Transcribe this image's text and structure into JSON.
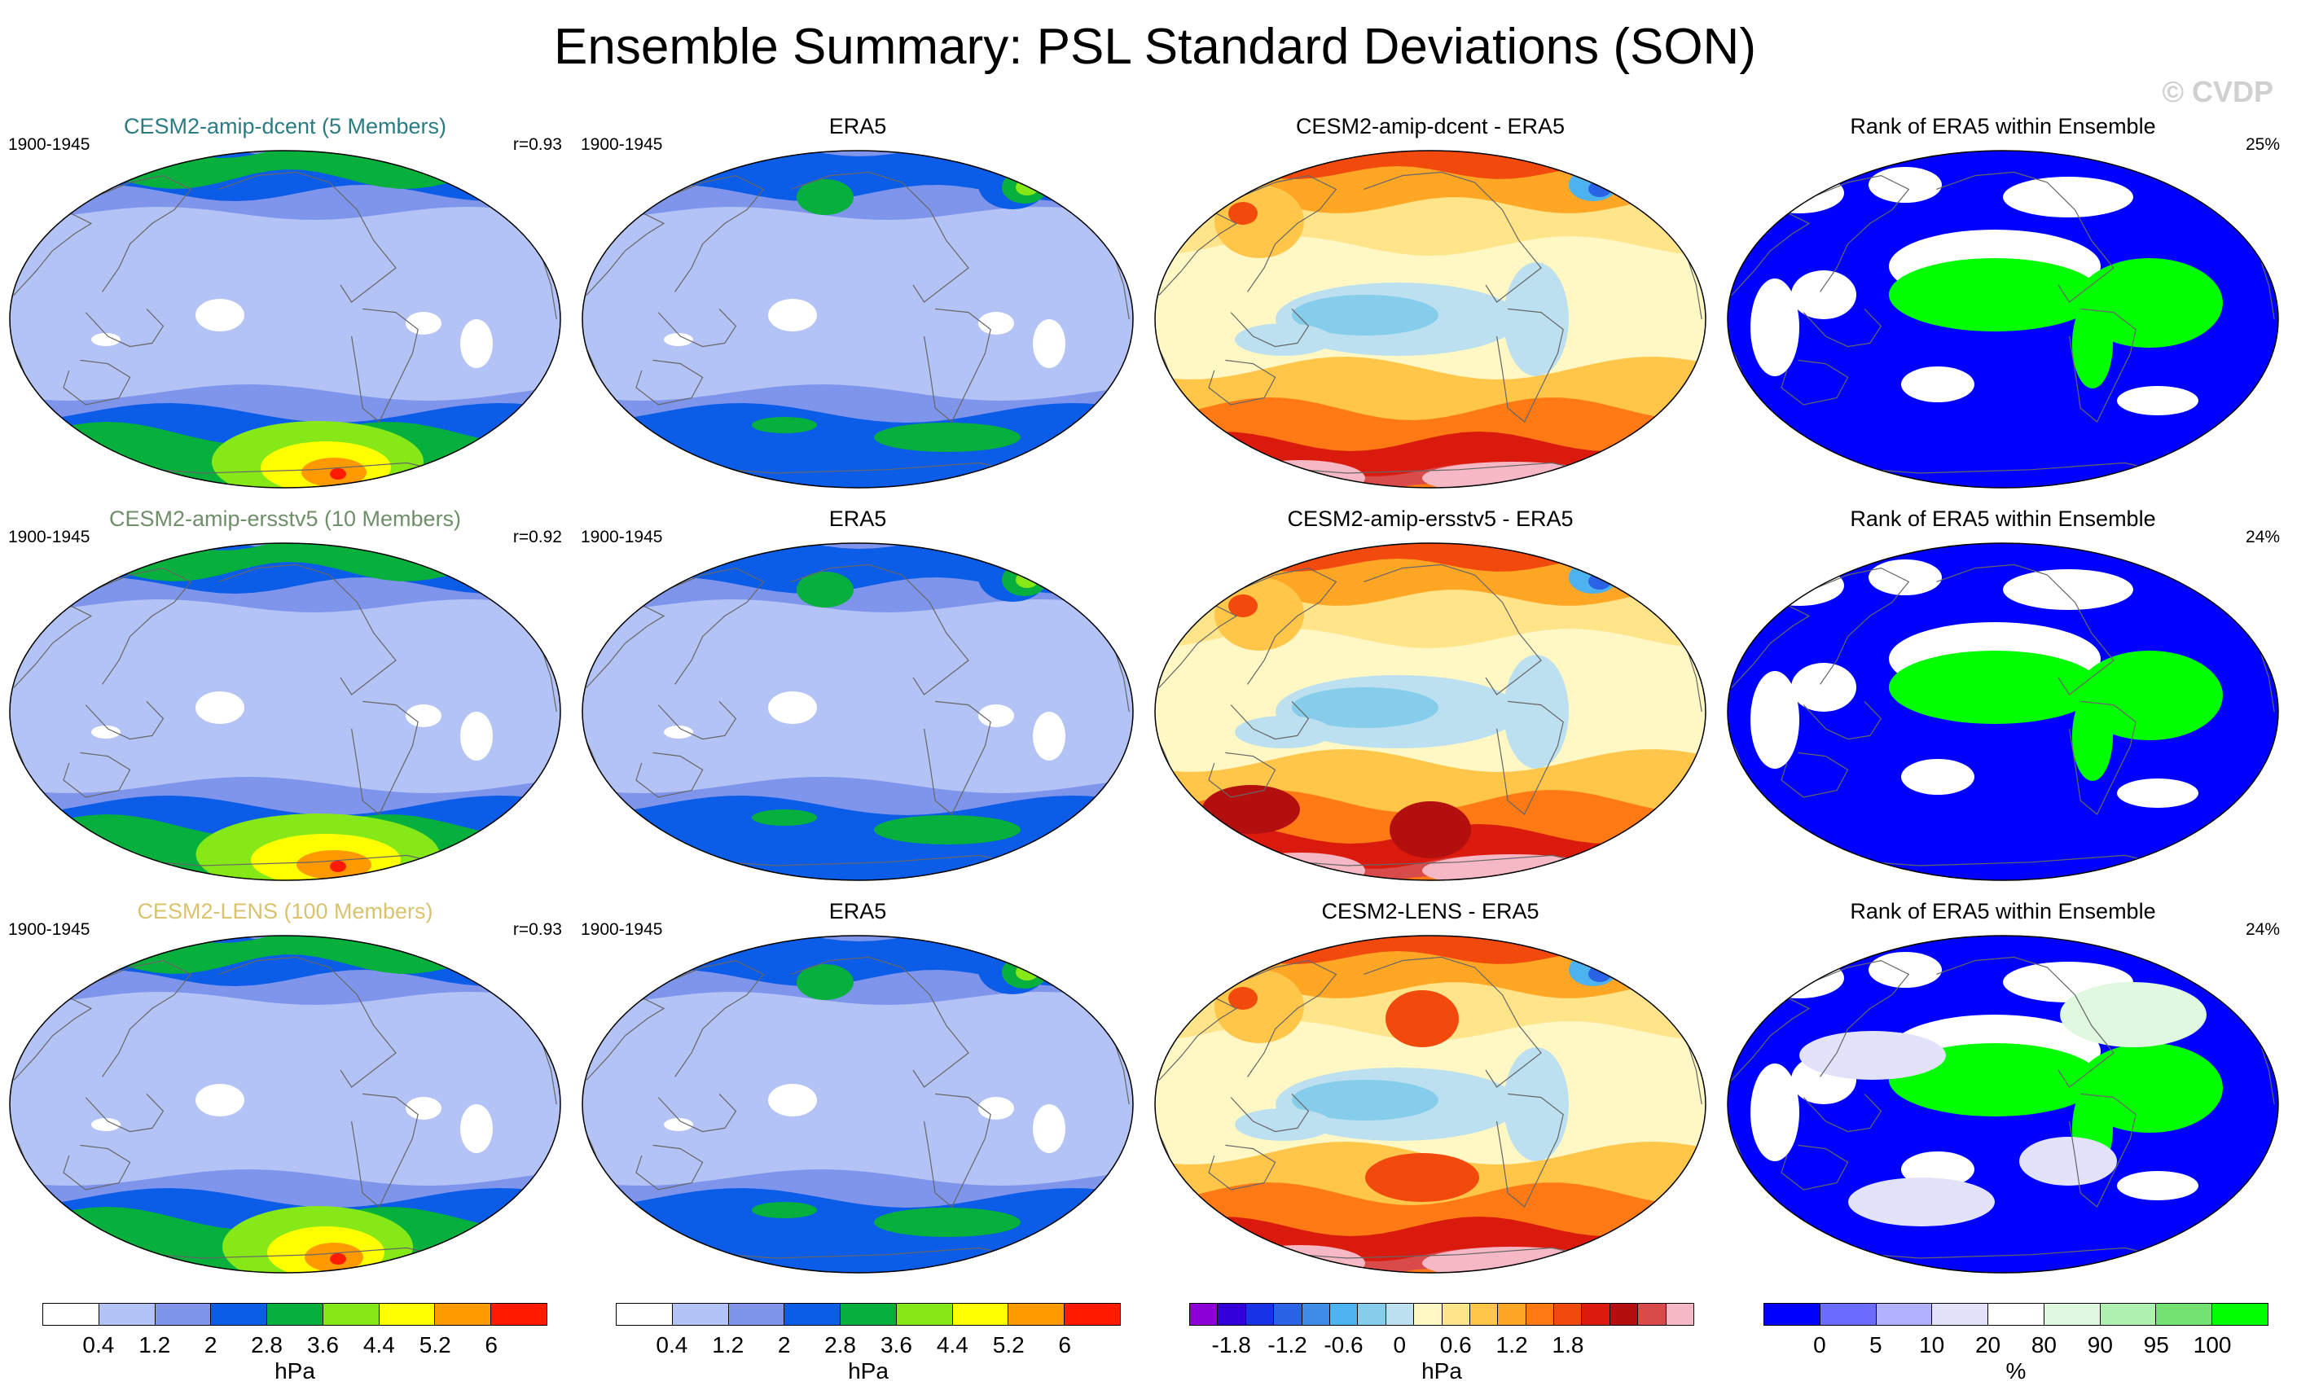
{
  "title": "Ensemble Summary: PSL Standard Deviations (SON)",
  "watermark": "© CVDP",
  "chart_data": {
    "type": "map",
    "projection": "Robinson",
    "variable": "PSL standard deviation",
    "season": "SON",
    "rows": [
      {
        "model_title": "CESM2-amip-dcent (5 Members)",
        "model_title_color": "#2b7b83",
        "period": "1900-1945",
        "pattern_correlation": "r=0.93",
        "obs_title": "ERA5",
        "obs_period": "1900-1945",
        "diff_title": "CESM2-amip-dcent - ERA5",
        "rank_title": "Rank of ERA5 within Ensemble",
        "rank_percent": "25%"
      },
      {
        "model_title": "CESM2-amip-ersstv5 (10 Members)",
        "model_title_color": "#6f8f6a",
        "period": "1900-1945",
        "pattern_correlation": "r=0.92",
        "obs_title": "ERA5",
        "obs_period": "1900-1945",
        "diff_title": "CESM2-amip-ersstv5 - ERA5",
        "rank_title": "Rank of ERA5 within Ensemble",
        "rank_percent": "24%"
      },
      {
        "model_title": "CESM2-LENS (100 Members)",
        "model_title_color": "#d9c36e",
        "period": "1900-1945",
        "pattern_correlation": "r=0.93",
        "obs_title": "ERA5",
        "obs_period": "1900-1945",
        "diff_title": "CESM2-LENS - ERA5",
        "rank_title": "Rank of ERA5 within Ensemble",
        "rank_percent": "24%"
      }
    ],
    "colorbars": {
      "stddev": {
        "unit": "hPa",
        "ticks": [
          "0.4",
          "1.2",
          "2",
          "2.8",
          "3.6",
          "4.4",
          "5.2",
          "6"
        ],
        "colors": [
          "#ffffff",
          "#b4c3f5",
          "#7f95eb",
          "#0b5ce6",
          "#07b03c",
          "#87e817",
          "#ffff00",
          "#ff9900",
          "#ff1a00"
        ]
      },
      "difference": {
        "unit": "hPa",
        "ticks": [
          "-1.8",
          "-1.2",
          "-0.6",
          "0",
          "0.6",
          "1.2",
          "1.8"
        ],
        "colors": [
          "#8a00d6",
          "#3300d9",
          "#1833e6",
          "#2b63e6",
          "#3d8ce6",
          "#4db3f0",
          "#86cdeb",
          "#bde0f0",
          "#fff8c4",
          "#ffe48a",
          "#ffc64a",
          "#ffa624",
          "#ff7a14",
          "#f24a0d",
          "#d91a0d",
          "#b30f0f",
          "#d94a4a",
          "#f5b8c4"
        ]
      },
      "rank": {
        "unit": "%",
        "ticks": [
          "0",
          "5",
          "10",
          "20",
          "80",
          "90",
          "95",
          "100"
        ],
        "colors": [
          "#0000ff",
          "#6b6bff",
          "#b1b1ff",
          "#e2e2fb",
          "#ffffff",
          "#dff8df",
          "#b0f0b0",
          "#72e272",
          "#00ff00"
        ]
      }
    }
  }
}
